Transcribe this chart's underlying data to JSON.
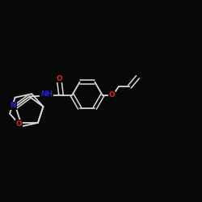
{
  "bg_color": "#080808",
  "bond_color": "#d8d8d8",
  "atom_colors": {
    "O": "#dd2222",
    "N": "#2222cc",
    "C": "#d8d8d8"
  },
  "figsize": [
    2.5,
    2.5
  ],
  "dpi": 100,
  "lw": 1.3,
  "lw_double": 1.1,
  "fontsize": 6.5
}
